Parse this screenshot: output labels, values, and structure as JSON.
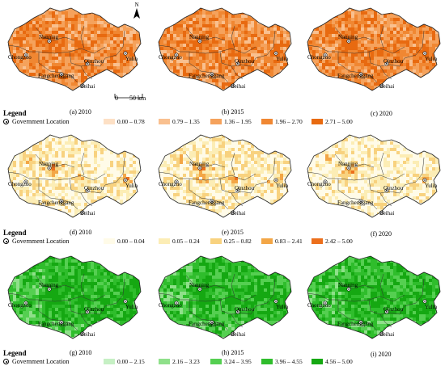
{
  "cities": [
    "Nanning",
    "Chongzuo",
    "Yulin",
    "Qinzhou",
    "Fangchenggang",
    "Beihai"
  ],
  "legend": {
    "title": "Legend",
    "government_location": "Government Location"
  },
  "rows": [
    {
      "palette": [
        "#fde0c5",
        "#f9c08f",
        "#f5a25c",
        "#f08732",
        "#e86a10"
      ],
      "ranges": [
        "0.00 – 0.78",
        "0.79 – 1.35",
        "1.36 – 1.95",
        "1.96 – 2.70",
        "2.71 – 5.00"
      ],
      "captions": [
        "(a) 2010",
        "(b) 2015",
        "(c) 2020"
      ],
      "levels": [
        0.62,
        0.62,
        0.66
      ]
    },
    {
      "palette": [
        "#fffbe8",
        "#fcedb5",
        "#f8d27f",
        "#f3a646",
        "#ec6f1c"
      ],
      "ranges": [
        "0.00 – 0.04",
        "0.05 – 0.24",
        "0.25 – 0.82",
        "0.83 – 2.41",
        "2.42 – 5.00"
      ],
      "captions": [
        "(d) 2010",
        "(e) 2015",
        "(f) 2020"
      ],
      "levels": [
        0.22,
        0.24,
        0.18
      ]
    },
    {
      "palette": [
        "#c6f0c4",
        "#8fe08a",
        "#55cf51",
        "#2fbd2c",
        "#15a812"
      ],
      "ranges": [
        "0.00 – 2.15",
        "2.16 – 3.23",
        "3.24 – 3.95",
        "3.96 – 4.55",
        "4.56 – 5.00"
      ],
      "captions": [
        "(g) 2010",
        "(h) 2015",
        "(i) 2020"
      ],
      "levels": [
        0.74,
        0.74,
        0.74
      ]
    }
  ],
  "scale": {
    "zero": "0",
    "label": "50 km"
  },
  "north": "N"
}
